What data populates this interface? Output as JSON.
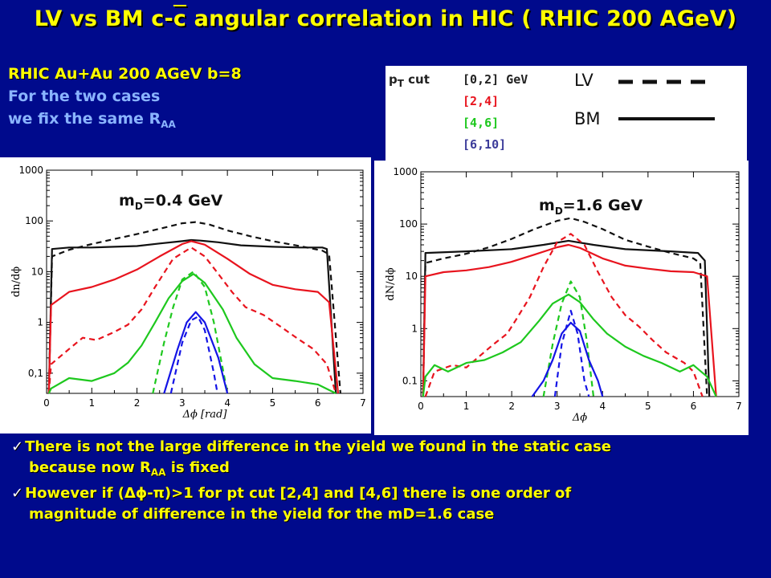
{
  "slide": {
    "title_pre": "LV vs BM  c-",
    "title_c": "c",
    "title_post": " angular correlation in HIC ( RHIC 200 AGeV)",
    "info_line1": "RHIC Au+Au  200 AGeV  b=8",
    "info_line2": "For the two cases",
    "info_line3_pre": "we fix the same R",
    "info_line3_sub": "AA",
    "bullets": [
      {
        "line1": "There is not the  large difference in the yield  we found in the static case",
        "line2_pre": "because now R",
        "line2_sub": "AA",
        "line2_post": " is fixed"
      },
      {
        "line1": "However if (Δϕ-π)>1 for pt cut [2,4] and [4,6] there is one order of",
        "line2": "magnitude of difference in the yield for the mD=1.6 case"
      }
    ]
  },
  "legend": {
    "pt_label": "p",
    "pt_sub": "T",
    "pt_suffix": " cut",
    "ranges": [
      {
        "label": "[0,2] GeV",
        "color": "#111111"
      },
      {
        "label": "[2,4]",
        "color": "#e8141e"
      },
      {
        "label": "[4,6]",
        "color": "#1ec81e"
      },
      {
        "label": "[6,10]",
        "color": "#3c3c9a"
      }
    ],
    "lv_label": "LV",
    "bm_label": "BM"
  },
  "colors": {
    "pt0_2": "#111111",
    "pt2_4": "#e8141e",
    "pt4_6": "#1ec81e",
    "pt6_10": "#1414e6"
  },
  "chart_data": [
    {
      "type": "line",
      "annotation_pre": "m",
      "annotation_sub": "D",
      "annotation_post": "=0.4 GeV",
      "ylabel": "dn/dϕ",
      "xlabel": "Δϕ [rad]",
      "yscale": "log",
      "xlim": [
        0,
        7
      ],
      "ylim": [
        0.04,
        1000
      ],
      "x_ticks": [
        "0",
        "1",
        "2",
        "3",
        "4",
        "5",
        "6",
        "7"
      ],
      "y_ticks": [
        "1000",
        "100",
        "10",
        "1",
        "0,1"
      ],
      "series": [
        {
          "pt": "[0,2]",
          "model": "BM",
          "color": "#111111",
          "dash": false,
          "points": [
            [
              0.05,
              0.04
            ],
            [
              0.12,
              28
            ],
            [
              0.5,
              30
            ],
            [
              1.0,
              30
            ],
            [
              1.5,
              31
            ],
            [
              2,
              32
            ],
            [
              2.5,
              36
            ],
            [
              3.0,
              40
            ],
            [
              3.2,
              42
            ],
            [
              3.4,
              41
            ],
            [
              3.8,
              38
            ],
            [
              4.3,
              33
            ],
            [
              5,
              31
            ],
            [
              5.6,
              30
            ],
            [
              6.1,
              30
            ],
            [
              6.2,
              28
            ],
            [
              6.4,
              0.04
            ]
          ]
        },
        {
          "pt": "[0,2]",
          "model": "LV",
          "color": "#111111",
          "dash": true,
          "points": [
            [
              0.05,
              0.04
            ],
            [
              0.12,
              20
            ],
            [
              0.5,
              27
            ],
            [
              1.0,
              35
            ],
            [
              1.5,
              44
            ],
            [
              2,
              55
            ],
            [
              2.5,
              70
            ],
            [
              3.0,
              90
            ],
            [
              3.3,
              95
            ],
            [
              3.6,
              85
            ],
            [
              4,
              65
            ],
            [
              4.5,
              50
            ],
            [
              5,
              40
            ],
            [
              5.6,
              32
            ],
            [
              6.1,
              26
            ],
            [
              6.25,
              22
            ],
            [
              6.5,
              0.04
            ]
          ]
        },
        {
          "pt": "[2,4]",
          "model": "BM",
          "color": "#e8141e",
          "dash": false,
          "points": [
            [
              0.05,
              0.04
            ],
            [
              0.1,
              2.2
            ],
            [
              0.5,
              4.0
            ],
            [
              1,
              5.0
            ],
            [
              1.5,
              7
            ],
            [
              2,
              11
            ],
            [
              2.5,
              20
            ],
            [
              3,
              35
            ],
            [
              3.2,
              40
            ],
            [
              3.5,
              34
            ],
            [
              4,
              18
            ],
            [
              4.5,
              9
            ],
            [
              5,
              5.5
            ],
            [
              5.5,
              4.5
            ],
            [
              6,
              4
            ],
            [
              6.25,
              2.5
            ],
            [
              6.45,
              0.04
            ]
          ]
        },
        {
          "pt": "[2,4]",
          "model": "LV",
          "color": "#e8141e",
          "dash": true,
          "points": [
            [
              0.05,
              0.04
            ],
            [
              0.1,
              0.15
            ],
            [
              0.5,
              0.3
            ],
            [
              0.8,
              0.5
            ],
            [
              1.1,
              0.45
            ],
            [
              1.5,
              0.65
            ],
            [
              1.8,
              0.9
            ],
            [
              2.1,
              1.8
            ],
            [
              2.4,
              5
            ],
            [
              2.8,
              18
            ],
            [
              3.2,
              30
            ],
            [
              3.5,
              20
            ],
            [
              3.8,
              9
            ],
            [
              4.1,
              4
            ],
            [
              4.4,
              2
            ],
            [
              4.8,
              1.4
            ],
            [
              5.2,
              0.8
            ],
            [
              5.6,
              0.45
            ],
            [
              5.9,
              0.3
            ],
            [
              6.2,
              0.15
            ],
            [
              6.4,
              0.04
            ]
          ]
        },
        {
          "pt": "[4,6]",
          "model": "BM",
          "color": "#1ec81e",
          "dash": false,
          "points": [
            [
              0.05,
              0.04
            ],
            [
              0.1,
              0.05
            ],
            [
              0.5,
              0.08
            ],
            [
              1,
              0.07
            ],
            [
              1.5,
              0.1
            ],
            [
              1.8,
              0.16
            ],
            [
              2.1,
              0.35
            ],
            [
              2.4,
              1.0
            ],
            [
              2.7,
              3.0
            ],
            [
              3.0,
              6.5
            ],
            [
              3.25,
              9
            ],
            [
              3.5,
              6
            ],
            [
              3.9,
              1.8
            ],
            [
              4.2,
              0.5
            ],
            [
              4.6,
              0.15
            ],
            [
              5,
              0.08
            ],
            [
              5.5,
              0.07
            ],
            [
              6,
              0.06
            ],
            [
              6.4,
              0.04
            ]
          ]
        },
        {
          "pt": "[4,6]",
          "model": "LV",
          "color": "#1ec81e",
          "dash": true,
          "points": [
            [
              2.35,
              0.04
            ],
            [
              2.6,
              0.4
            ],
            [
              2.8,
              2
            ],
            [
              3.0,
              7
            ],
            [
              3.25,
              10
            ],
            [
              3.5,
              5
            ],
            [
              3.7,
              1
            ],
            [
              3.9,
              0.12
            ],
            [
              4.0,
              0.04
            ]
          ]
        },
        {
          "pt": "[6,10]",
          "model": "BM",
          "color": "#1414e6",
          "dash": false,
          "points": [
            [
              2.6,
              0.04
            ],
            [
              2.9,
              0.3
            ],
            [
              3.1,
              1.0
            ],
            [
              3.3,
              1.6
            ],
            [
              3.5,
              1.0
            ],
            [
              3.8,
              0.2
            ],
            [
              4.0,
              0.04
            ]
          ]
        },
        {
          "pt": "[6,10]",
          "model": "LV",
          "color": "#1414e6",
          "dash": true,
          "points": [
            [
              2.75,
              0.04
            ],
            [
              3.0,
              0.4
            ],
            [
              3.2,
              1.1
            ],
            [
              3.35,
              1.3
            ],
            [
              3.5,
              0.7
            ],
            [
              3.7,
              0.1
            ],
            [
              3.78,
              0.04
            ]
          ]
        }
      ]
    },
    {
      "type": "line",
      "annotation_pre": "m",
      "annotation_sub": "D",
      "annotation_post": "=1.6 GeV",
      "ylabel": "dN/dϕ",
      "xlabel": "Δϕ",
      "yscale": "log",
      "xlim": [
        0,
        7
      ],
      "ylim": [
        0.05,
        1000
      ],
      "x_ticks": [
        "0",
        "1",
        "2",
        "3",
        "4",
        "5",
        "6",
        "7"
      ],
      "y_ticks": [
        "1000",
        "100",
        "10",
        "1",
        "0.1"
      ],
      "series": [
        {
          "pt": "[0,2]",
          "model": "BM",
          "color": "#111111",
          "dash": false,
          "points": [
            [
              0.05,
              0.05
            ],
            [
              0.1,
              28
            ],
            [
              1,
              30
            ],
            [
              2,
              33
            ],
            [
              2.7,
              40
            ],
            [
              3.25,
              48
            ],
            [
              3.8,
              40
            ],
            [
              4.5,
              33
            ],
            [
              5.5,
              30
            ],
            [
              6.1,
              28
            ],
            [
              6.25,
              20
            ],
            [
              6.35,
              0.05
            ]
          ]
        },
        {
          "pt": "[0,2]",
          "model": "LV",
          "color": "#111111",
          "dash": true,
          "points": [
            [
              0.05,
              0.05
            ],
            [
              0.1,
              18
            ],
            [
              0.5,
              22
            ],
            [
              1,
              27
            ],
            [
              1.5,
              36
            ],
            [
              2,
              52
            ],
            [
              2.5,
              80
            ],
            [
              3,
              115
            ],
            [
              3.3,
              130
            ],
            [
              3.6,
              110
            ],
            [
              4,
              80
            ],
            [
              4.5,
              50
            ],
            [
              5,
              37
            ],
            [
              5.5,
              28
            ],
            [
              6,
              22
            ],
            [
              6.15,
              18
            ],
            [
              6.3,
              0.05
            ]
          ]
        },
        {
          "pt": "[2,4]",
          "model": "BM",
          "color": "#e8141e",
          "dash": false,
          "points": [
            [
              0.05,
              0.05
            ],
            [
              0.1,
              10
            ],
            [
              0.5,
              12
            ],
            [
              1,
              13
            ],
            [
              1.5,
              15
            ],
            [
              2,
              19
            ],
            [
              2.5,
              26
            ],
            [
              3,
              36
            ],
            [
              3.25,
              40
            ],
            [
              3.5,
              35
            ],
            [
              4,
              22
            ],
            [
              4.5,
              16
            ],
            [
              5,
              14
            ],
            [
              5.5,
              12.5
            ],
            [
              6,
              12
            ],
            [
              6.3,
              10
            ],
            [
              6.5,
              0.05
            ]
          ]
        },
        {
          "pt": "[2,4]",
          "model": "LV",
          "color": "#e8141e",
          "dash": true,
          "points": [
            [
              0.1,
              0.05
            ],
            [
              0.3,
              0.15
            ],
            [
              0.7,
              0.2
            ],
            [
              1.0,
              0.18
            ],
            [
              1.3,
              0.3
            ],
            [
              1.6,
              0.5
            ],
            [
              1.9,
              0.8
            ],
            [
              2.1,
              1.5
            ],
            [
              2.4,
              4
            ],
            [
              2.7,
              15
            ],
            [
              3.0,
              45
            ],
            [
              3.3,
              65
            ],
            [
              3.6,
              40
            ],
            [
              3.9,
              12
            ],
            [
              4.2,
              4
            ],
            [
              4.5,
              1.8
            ],
            [
              4.8,
              1.1
            ],
            [
              5.1,
              0.6
            ],
            [
              5.4,
              0.35
            ],
            [
              5.8,
              0.22
            ],
            [
              6.0,
              0.15
            ],
            [
              6.2,
              0.05
            ]
          ]
        },
        {
          "pt": "[4,6]",
          "model": "BM",
          "color": "#1ec81e",
          "dash": false,
          "points": [
            [
              0.05,
              0.05
            ],
            [
              0.1,
              0.12
            ],
            [
              0.3,
              0.2
            ],
            [
              0.6,
              0.15
            ],
            [
              1.0,
              0.22
            ],
            [
              1.4,
              0.25
            ],
            [
              1.8,
              0.35
            ],
            [
              2.2,
              0.55
            ],
            [
              2.6,
              1.4
            ],
            [
              2.9,
              3
            ],
            [
              3.25,
              4.5
            ],
            [
              3.5,
              3.2
            ],
            [
              3.8,
              1.5
            ],
            [
              4.1,
              0.8
            ],
            [
              4.5,
              0.45
            ],
            [
              4.9,
              0.3
            ],
            [
              5.3,
              0.22
            ],
            [
              5.7,
              0.15
            ],
            [
              6.0,
              0.2
            ],
            [
              6.3,
              0.12
            ],
            [
              6.5,
              0.05
            ]
          ]
        },
        {
          "pt": "[4,6]",
          "model": "LV",
          "color": "#1ec81e",
          "dash": true,
          "points": [
            [
              2.7,
              0.05
            ],
            [
              2.9,
              0.5
            ],
            [
              3.1,
              3
            ],
            [
              3.3,
              8
            ],
            [
              3.5,
              4
            ],
            [
              3.65,
              0.6
            ],
            [
              3.8,
              0.05
            ]
          ]
        },
        {
          "pt": "[6,10]",
          "model": "BM",
          "color": "#1414e6",
          "dash": false,
          "points": [
            [
              2.45,
              0.05
            ],
            [
              2.7,
              0.1
            ],
            [
              2.9,
              0.25
            ],
            [
              3.1,
              0.8
            ],
            [
              3.3,
              1.3
            ],
            [
              3.5,
              0.9
            ],
            [
              3.7,
              0.25
            ],
            [
              3.9,
              0.1
            ],
            [
              4.0,
              0.05
            ]
          ]
        },
        {
          "pt": "[6,10]",
          "model": "LV",
          "color": "#1414e6",
          "dash": true,
          "points": [
            [
              2.95,
              0.05
            ],
            [
              3.1,
              0.5
            ],
            [
              3.3,
              2.2
            ],
            [
              3.45,
              0.8
            ],
            [
              3.6,
              0.1
            ],
            [
              3.7,
              0.05
            ]
          ]
        }
      ]
    }
  ]
}
